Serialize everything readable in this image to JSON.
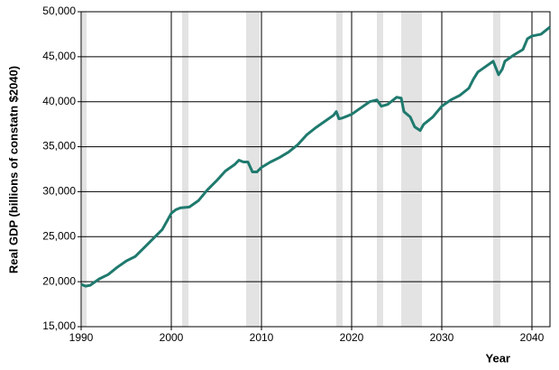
{
  "chart_data": {
    "type": "line",
    "y_label": "Real GDP (billions of constatn $2040)",
    "x_label": "Year",
    "xlim": [
      1990,
      2042
    ],
    "xticks": [
      1990,
      2000,
      2010,
      2020,
      2030,
      2040
    ],
    "ylim": [
      15000,
      50000
    ],
    "yticks": [
      {
        "value": 15000,
        "label": "15,000"
      },
      {
        "value": 20000,
        "label": "20,000"
      },
      {
        "value": 25000,
        "label": "25,000"
      },
      {
        "value": 30000,
        "label": "30,000"
      },
      {
        "value": 35000,
        "label": "35,000"
      },
      {
        "value": 40000,
        "label": "40,000"
      },
      {
        "value": 45000,
        "label": "45,000"
      },
      {
        "value": 50000,
        "label": "50,000"
      }
    ],
    "grid": true,
    "shaded_periods": [
      [
        1990.1,
        1990.6
      ],
      [
        2001.2,
        2001.9
      ],
      [
        2008.3,
        2009.8
      ],
      [
        2018.3,
        2019.0
      ],
      [
        2022.8,
        2023.5
      ],
      [
        2025.5,
        2027.8
      ],
      [
        2035.7,
        2036.5
      ]
    ],
    "shade_color": "#e3e3e3",
    "x": [
      1990,
      1990.5,
      1991,
      1992,
      1993,
      1994,
      1995,
      1996,
      1997,
      1998,
      1999,
      2000,
      2000.5,
      2001,
      2002,
      2003,
      2004,
      2005,
      2006,
      2007,
      2007.5,
      2008,
      2008.5,
      2009,
      2009.5,
      2010,
      2011,
      2012,
      2013,
      2014,
      2015,
      2016,
      2017,
      2018,
      2018.3,
      2018.6,
      2019,
      2020,
      2021,
      2022,
      2022.8,
      2023.3,
      2024,
      2025,
      2025.5,
      2025.8,
      2026.5,
      2027,
      2027.6,
      2028,
      2029,
      2030,
      2031,
      2032,
      2033,
      2033.5,
      2034,
      2035,
      2035.7,
      2036.3,
      2036.7,
      2037,
      2038,
      2039,
      2039.5,
      2040,
      2041,
      2042
    ],
    "series": [
      {
        "color": "#1f7a6e",
        "values": [
          19700,
          19500,
          19600,
          20300,
          20800,
          21600,
          22300,
          22800,
          23800,
          24800,
          25800,
          27600,
          28000,
          28200,
          28300,
          29000,
          30200,
          31200,
          32300,
          33000,
          33500,
          33300,
          33300,
          32200,
          32200,
          32700,
          33300,
          33800,
          34400,
          35200,
          36300,
          37100,
          37800,
          38500,
          38900,
          38100,
          38200,
          38600,
          39300,
          40000,
          40200,
          39500,
          39700,
          40500,
          40400,
          38900,
          38300,
          37200,
          36800,
          37500,
          38300,
          39500,
          40200,
          40700,
          41500,
          42500,
          43300,
          44000,
          44500,
          43000,
          43600,
          44500,
          45200,
          45800,
          47000,
          47300,
          47500,
          48300
        ]
      }
    ]
  }
}
